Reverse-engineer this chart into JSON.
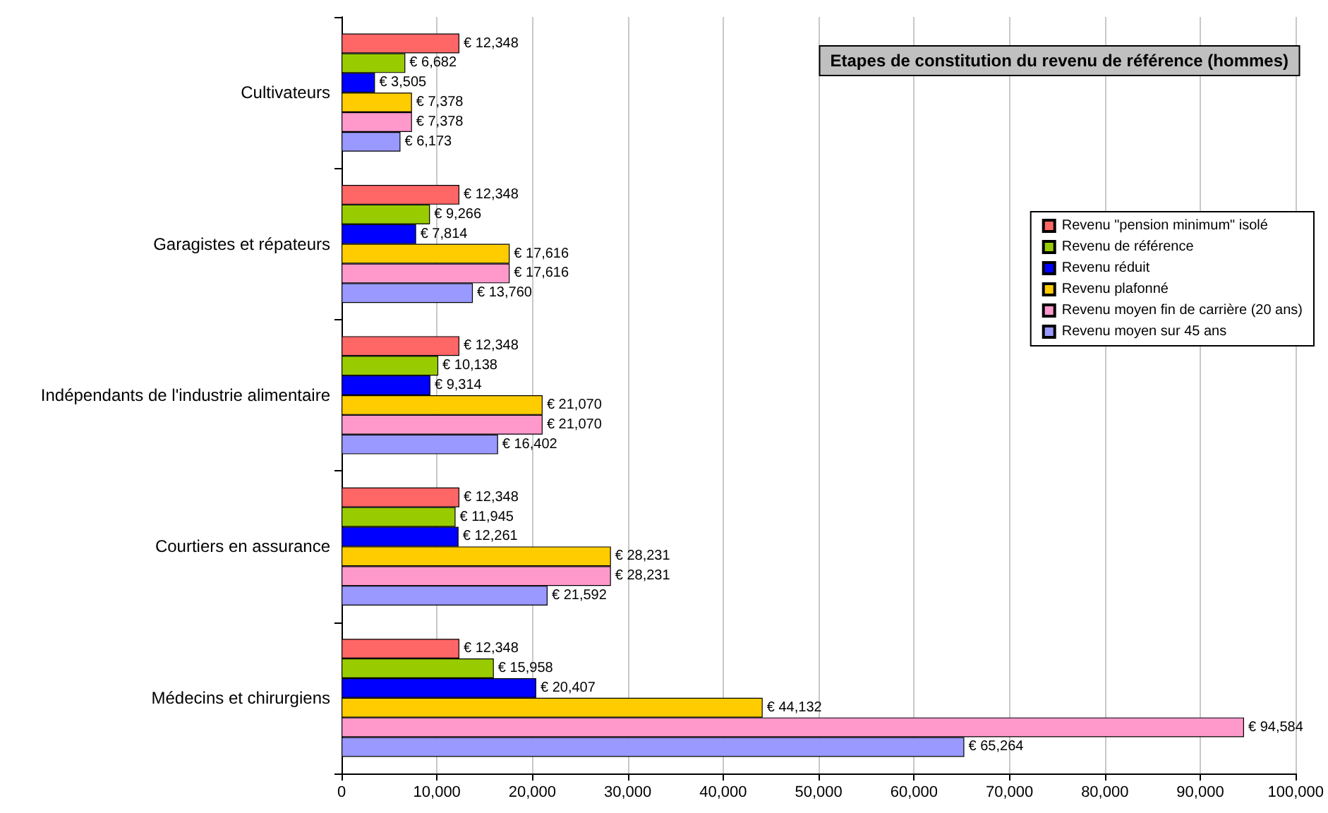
{
  "chart_data": {
    "type": "bar",
    "orientation": "horizontal",
    "title": "Etapes de constitution du revenu de référence (hommes)",
    "categories": [
      "Cultivateurs",
      "Garagistes et répateurs",
      "Indépendants de l'industrie alimentaire",
      "Courtiers en assurance",
      "Médecins et chirurgiens"
    ],
    "series": [
      {
        "name": "Revenu \"pension minimum\" isolé",
        "color": "#ff6666",
        "values": [
          12348,
          12348,
          12348,
          12348,
          12348
        ],
        "value_labels": [
          "€ 12,348",
          "€ 12,348",
          "€ 12,348",
          "€ 12,348",
          "€ 12,348"
        ]
      },
      {
        "name": "Revenu de référence",
        "color": "#99cc00",
        "values": [
          6682,
          9266,
          10138,
          11945,
          15958
        ],
        "value_labels": [
          "€ 6,682",
          "€ 9,266",
          "€ 10,138",
          "€ 11,945",
          "€ 15,958"
        ]
      },
      {
        "name": "Revenu réduit",
        "color": "#0000ff",
        "values": [
          3505,
          7814,
          9314,
          12261,
          20407
        ],
        "value_labels": [
          "€ 3,505",
          "€ 7,814",
          "€ 9,314",
          "€ 12,261",
          "€ 20,407"
        ]
      },
      {
        "name": "Revenu plafonné",
        "color": "#ffcc00",
        "values": [
          7378,
          17616,
          21070,
          28231,
          44132
        ],
        "value_labels": [
          "€ 7,378",
          "€ 17,616",
          "€ 21,070",
          "€ 28,231",
          "€ 44,132"
        ]
      },
      {
        "name": "Revenu moyen fin de carrière (20 ans)",
        "color": "#ff99cc",
        "values": [
          7378,
          17616,
          21070,
          28231,
          94584
        ],
        "value_labels": [
          "€ 7,378",
          "€ 17,616",
          "€ 21,070",
          "€ 28,231",
          "€ 94,584"
        ]
      },
      {
        "name": "Revenu moyen sur 45 ans",
        "color": "#9999ff",
        "values": [
          6173,
          13760,
          16402,
          21592,
          65264
        ],
        "value_labels": [
          "€ 6,173",
          "€ 13,760",
          "€ 16,402",
          "€ 21,592",
          "€ 65,264"
        ]
      }
    ],
    "xlim": [
      0,
      100000
    ],
    "xticks": [
      {
        "value": 0,
        "label": "0"
      },
      {
        "value": 10000,
        "label": "10,000"
      },
      {
        "value": 20000,
        "label": "20,000"
      },
      {
        "value": 30000,
        "label": "30,000"
      },
      {
        "value": 40000,
        "label": "40,000"
      },
      {
        "value": 50000,
        "label": "50,000"
      },
      {
        "value": 60000,
        "label": "60,000"
      },
      {
        "value": 70000,
        "label": "70,000"
      },
      {
        "value": 80000,
        "label": "80,000"
      },
      {
        "value": 90000,
        "label": "90,000"
      },
      {
        "value": 100000,
        "label": "100,000"
      }
    ],
    "grid": "x",
    "legend": "right"
  }
}
